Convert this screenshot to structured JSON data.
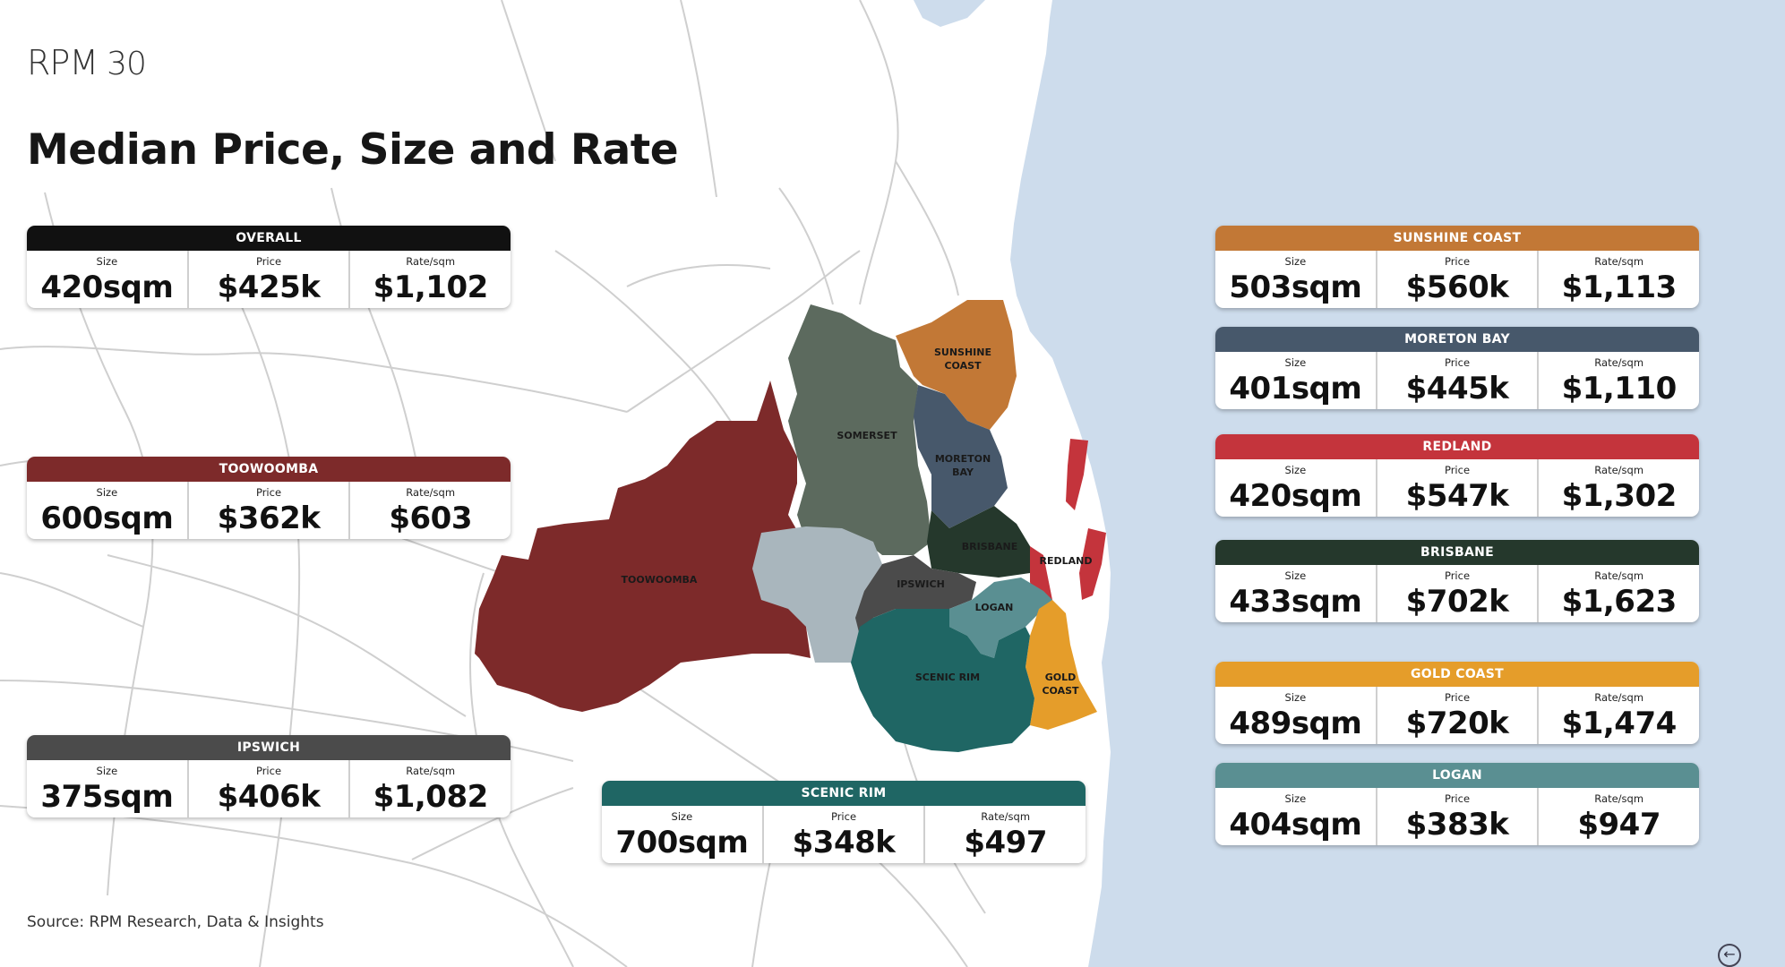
{
  "brand": {
    "name": "RPM",
    "anniversary": "30"
  },
  "title": "Median Price, Size and Rate",
  "source": "Source: RPM Research, Data & Insights",
  "labels": {
    "size": "Size",
    "price": "Price",
    "rate": "Rate/sqm"
  },
  "colors": {
    "ocean": "#cddcec",
    "roads": "#cfcfcf",
    "overall": "#111111",
    "toowoomba": "#7d2a2a",
    "ipswich": "#4b4b4b",
    "scenic_rim": "#1f6664",
    "sunshine_coast": "#c27836",
    "moreton_bay": "#47586b",
    "redland": "#c4343c",
    "brisbane": "#25382c",
    "gold_coast": "#e59d2a",
    "logan": "#5a8f92",
    "somerset": "#5c6a5e",
    "lockyer": "#a9b6bd"
  },
  "cards": {
    "overall": {
      "name": "OVERALL",
      "size": "420sqm",
      "price": "$425k",
      "rate": "$1,102"
    },
    "toowoomba": {
      "name": "TOOWOOMBA",
      "size": "600sqm",
      "price": "$362k",
      "rate": "$603"
    },
    "ipswich": {
      "name": "IPSWICH",
      "size": "375sqm",
      "price": "$406k",
      "rate": "$1,082"
    },
    "scenic_rim": {
      "name": "SCENIC RIM",
      "size": "700sqm",
      "price": "$348k",
      "rate": "$497"
    },
    "sunshine_coast": {
      "name": "SUNSHINE COAST",
      "size": "503sqm",
      "price": "$560k",
      "rate": "$1,113"
    },
    "moreton_bay": {
      "name": "MORETON BAY",
      "size": "401sqm",
      "price": "$445k",
      "rate": "$1,110"
    },
    "redland": {
      "name": "REDLAND",
      "size": "420sqm",
      "price": "$547k",
      "rate": "$1,302"
    },
    "brisbane": {
      "name": "BRISBANE",
      "size": "433sqm",
      "price": "$702k",
      "rate": "$1,623"
    },
    "gold_coast": {
      "name": "GOLD COAST",
      "size": "489sqm",
      "price": "$720k",
      "rate": "$1,474"
    },
    "logan": {
      "name": "LOGAN",
      "size": "404sqm",
      "price": "$383k",
      "rate": "$947"
    }
  },
  "map_labels": {
    "sunshine_coast_1": "SUNSHINE",
    "sunshine_coast_2": "COAST",
    "somerset": "SOMERSET",
    "moreton_bay_1": "MORETON",
    "moreton_bay_2": "BAY",
    "brisbane": "BRISBANE",
    "redland": "REDLAND",
    "toowoomba": "TOOWOOMBA",
    "ipswich": "IPSWICH",
    "logan": "LOGAN",
    "scenic_rim": "SCENIC RIM",
    "gold_coast_1": "GOLD",
    "gold_coast_2": "COAST"
  }
}
